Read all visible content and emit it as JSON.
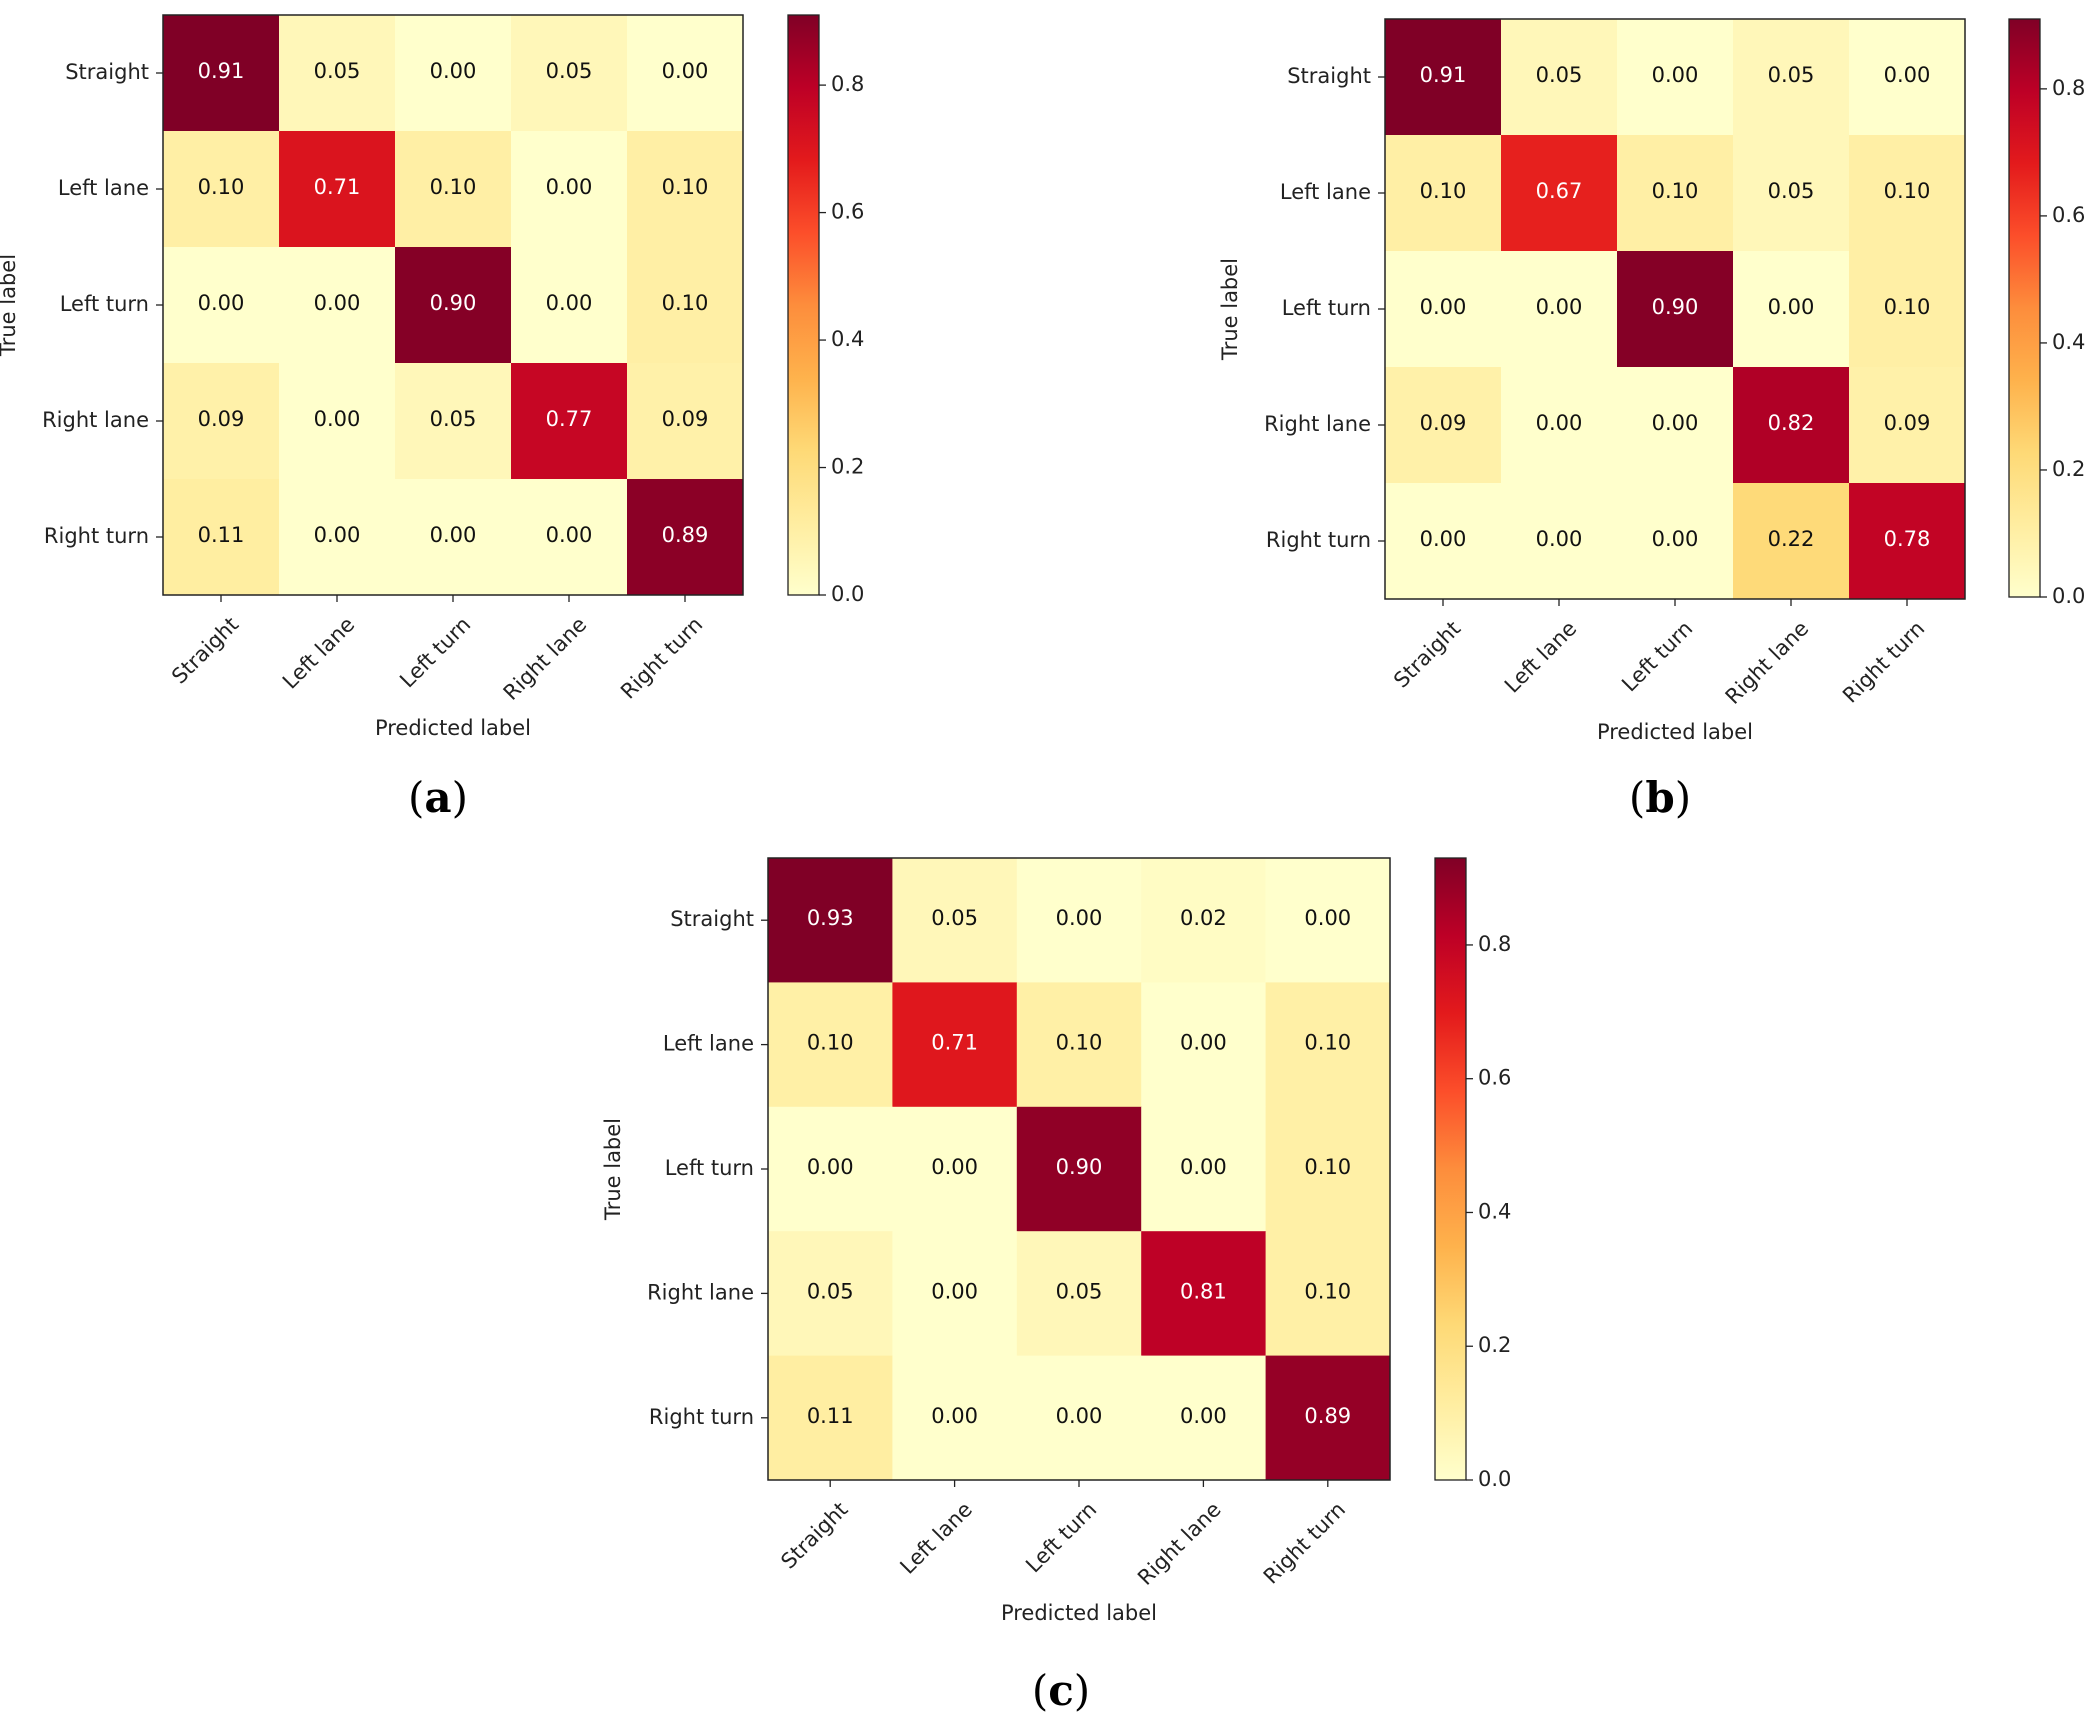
{
  "chart_data": [
    {
      "type": "heatmap",
      "panel": "a",
      "xlabel": "Predicted label",
      "ylabel": "True label",
      "x_categories": [
        "Straight",
        "Left lane",
        "Left turn",
        "Right lane",
        "Right turn"
      ],
      "y_categories": [
        "Straight",
        "Left lane",
        "Left turn",
        "Right lane",
        "Right turn"
      ],
      "values": [
        [
          0.91,
          0.05,
          0.0,
          0.05,
          0.0
        ],
        [
          0.1,
          0.71,
          0.1,
          0.0,
          0.1
        ],
        [
          0.0,
          0.0,
          0.9,
          0.0,
          0.1
        ],
        [
          0.09,
          0.0,
          0.05,
          0.77,
          0.09
        ],
        [
          0.11,
          0.0,
          0.0,
          0.0,
          0.89
        ]
      ],
      "colorbar": {
        "min": 0.0,
        "max": 0.91,
        "ticks": [
          0.0,
          0.2,
          0.4,
          0.6,
          0.8
        ],
        "tick_labels": [
          "0.0",
          "0.2",
          "0.4",
          "0.6",
          "0.8"
        ]
      }
    },
    {
      "type": "heatmap",
      "panel": "b",
      "xlabel": "Predicted label",
      "ylabel": "True label",
      "x_categories": [
        "Straight",
        "Left lane",
        "Left turn",
        "Right lane",
        "Right turn"
      ],
      "y_categories": [
        "Straight",
        "Left lane",
        "Left turn",
        "Right lane",
        "Right turn"
      ],
      "values": [
        [
          0.91,
          0.05,
          0.0,
          0.05,
          0.0
        ],
        [
          0.1,
          0.67,
          0.1,
          0.05,
          0.1
        ],
        [
          0.0,
          0.0,
          0.9,
          0.0,
          0.1
        ],
        [
          0.09,
          0.0,
          0.0,
          0.82,
          0.09
        ],
        [
          0.0,
          0.0,
          0.0,
          0.22,
          0.78
        ]
      ],
      "colorbar": {
        "min": 0.0,
        "max": 0.91,
        "ticks": [
          0.0,
          0.2,
          0.4,
          0.6,
          0.8
        ],
        "tick_labels": [
          "0.0",
          "0.2",
          "0.4",
          "0.6",
          "0.8"
        ]
      }
    },
    {
      "type": "heatmap",
      "panel": "c",
      "xlabel": "Predicted label",
      "ylabel": "True label",
      "x_categories": [
        "Straight",
        "Left lane",
        "Left turn",
        "Right lane",
        "Right turn"
      ],
      "y_categories": [
        "Straight",
        "Left lane",
        "Left turn",
        "Right lane",
        "Right turn"
      ],
      "values": [
        [
          0.93,
          0.05,
          0.0,
          0.02,
          0.0
        ],
        [
          0.1,
          0.71,
          0.1,
          0.0,
          0.1
        ],
        [
          0.0,
          0.0,
          0.9,
          0.0,
          0.1
        ],
        [
          0.05,
          0.0,
          0.05,
          0.81,
          0.1
        ],
        [
          0.11,
          0.0,
          0.0,
          0.0,
          0.89
        ]
      ],
      "colorbar": {
        "min": 0.0,
        "max": 0.93,
        "ticks": [
          0.0,
          0.2,
          0.4,
          0.6,
          0.8
        ],
        "tick_labels": [
          "0.0",
          "0.2",
          "0.4",
          "0.6",
          "0.8"
        ]
      }
    }
  ],
  "panel_labels": [
    {
      "open": "(",
      "letter": "a",
      "close": ")"
    },
    {
      "open": "(",
      "letter": "b",
      "close": ")"
    },
    {
      "open": "(",
      "letter": "c",
      "close": ")"
    }
  ],
  "colormap": [
    "#ffffcc",
    "#ffeda0",
    "#fed976",
    "#feb24c",
    "#fd8d3c",
    "#fc4e2a",
    "#e31a1c",
    "#bd0026",
    "#800026"
  ]
}
